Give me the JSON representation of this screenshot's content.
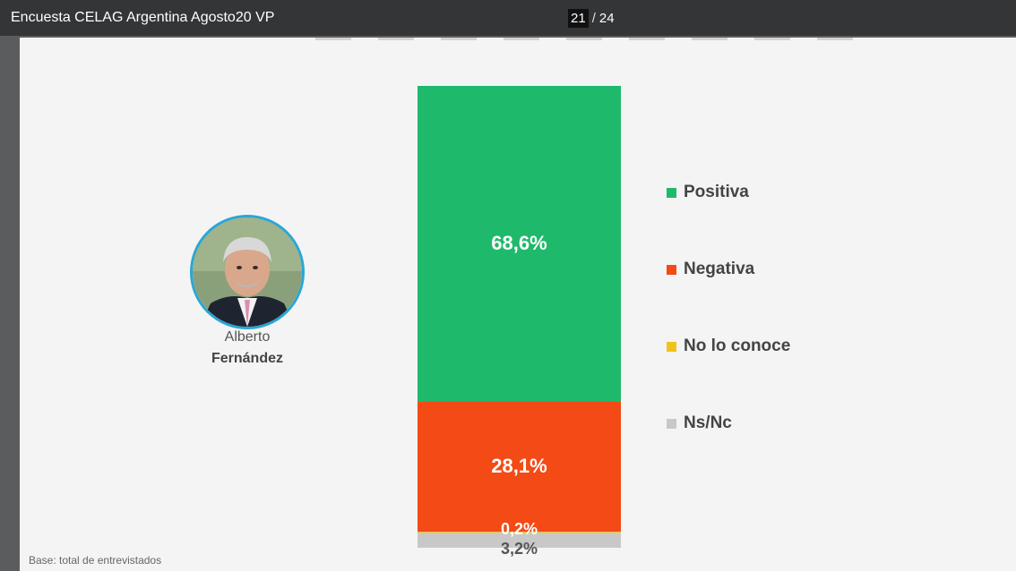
{
  "viewer": {
    "title": "Encuesta CELAG Argentina Agosto20 VP",
    "current_page": "21",
    "separator": "/",
    "total_pages": "24"
  },
  "person": {
    "first_name": "Alberto",
    "last_name": "Fernández"
  },
  "chart_data": {
    "type": "bar",
    "stacked": true,
    "categories": [
      "Alberto Fernández"
    ],
    "series": [
      {
        "name": "Positiva",
        "values": [
          68.6
        ],
        "label": "68,6%",
        "color": "#1fb96b"
      },
      {
        "name": "Negativa",
        "values": [
          28.1
        ],
        "label": "28,1%",
        "color": "#f34a16"
      },
      {
        "name": "No lo conoce",
        "values": [
          0.2
        ],
        "label": "0,2%",
        "color": "#f2c21b"
      },
      {
        "name": "Ns/Nc",
        "values": [
          3.2
        ],
        "label": "3,2%",
        "color": "#c8c8c8"
      }
    ],
    "ylim": [
      0,
      100
    ],
    "legend_position": "right"
  },
  "footer": {
    "base_note": "Base: total de entrevistados"
  }
}
